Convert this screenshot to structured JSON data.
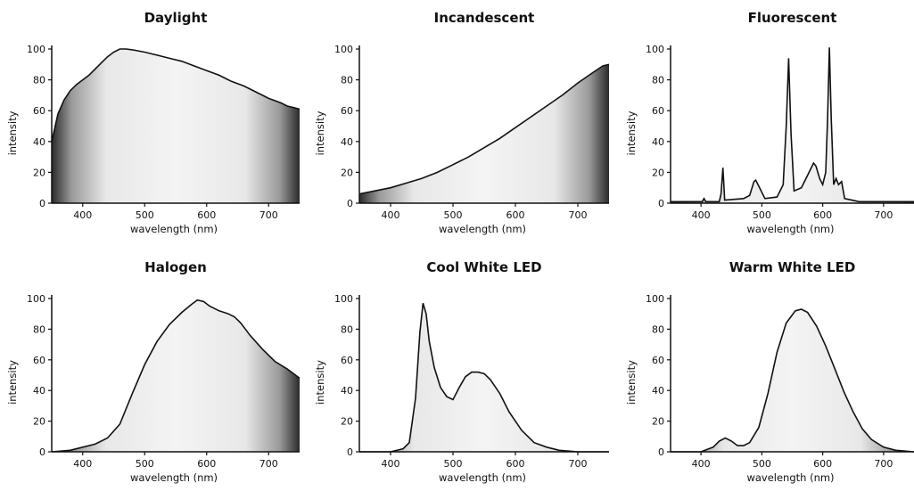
{
  "chart_data": [
    {
      "type": "area",
      "title": "Daylight",
      "xlabel": "wavelength (nm)",
      "ylabel": "intensity",
      "xlim": [
        350,
        750
      ],
      "ylim": [
        0,
        100
      ],
      "x_ticks": [
        "400",
        "500",
        "600",
        "700"
      ],
      "y_ticks": [
        "0",
        "20",
        "40",
        "60",
        "80",
        "100"
      ],
      "series": [
        {
          "x": [
            350,
            360,
            370,
            380,
            390,
            400,
            410,
            420,
            430,
            440,
            450,
            460,
            470,
            480,
            500,
            520,
            540,
            560,
            580,
            600,
            620,
            640,
            660,
            680,
            700,
            720,
            730,
            740,
            750
          ],
          "y": [
            40,
            58,
            67,
            73,
            77,
            80,
            83,
            87,
            91,
            95,
            98,
            100,
            100,
            99.5,
            98,
            96,
            94,
            92,
            89,
            86,
            83,
            79,
            76,
            72,
            68,
            65,
            63,
            62,
            61
          ]
        }
      ]
    },
    {
      "type": "area",
      "title": "Incandescent",
      "xlabel": "wavelength (nm)",
      "ylabel": "intensity",
      "xlim": [
        350,
        750
      ],
      "ylim": [
        0,
        100
      ],
      "x_ticks": [
        "400",
        "500",
        "600",
        "700"
      ],
      "y_ticks": [
        "0",
        "20",
        "40",
        "60",
        "80",
        "100"
      ],
      "series": [
        {
          "x": [
            350,
            375,
            400,
            425,
            450,
            475,
            500,
            525,
            550,
            575,
            600,
            625,
            650,
            675,
            700,
            725,
            740,
            750
          ],
          "y": [
            6,
            8,
            10,
            13,
            16,
            20,
            25,
            30,
            36,
            42,
            49,
            56,
            63,
            70,
            78,
            85,
            89,
            90
          ]
        }
      ]
    },
    {
      "type": "area",
      "title": "Fluorescent",
      "xlabel": "wavelength (nm)",
      "ylabel": "intensity",
      "xlim": [
        350,
        750
      ],
      "ylim": [
        0,
        100
      ],
      "x_ticks": [
        "400",
        "500",
        "600",
        "700"
      ],
      "y_ticks": [
        "0",
        "20",
        "40",
        "60",
        "80",
        "100"
      ],
      "series": [
        {
          "x": [
            350,
            390,
            402,
            405,
            408,
            430,
            433,
            436,
            439,
            470,
            480,
            487,
            490,
            495,
            505,
            525,
            535,
            540,
            544,
            548,
            553,
            565,
            575,
            580,
            585,
            589,
            595,
            600,
            605,
            608,
            611,
            614,
            618,
            622,
            626,
            631,
            636,
            660,
            700,
            750
          ],
          "y": [
            1,
            1,
            1,
            3,
            1,
            1,
            6,
            23,
            2,
            3,
            5,
            14,
            15,
            11,
            3,
            4,
            12,
            50,
            94,
            45,
            8,
            10,
            18,
            22,
            26,
            24,
            16,
            12,
            20,
            55,
            101,
            55,
            12,
            16,
            12,
            14,
            3,
            1,
            1,
            1
          ]
        }
      ]
    },
    {
      "type": "area",
      "title": "Halogen",
      "xlabel": "wavelength (nm)",
      "ylabel": "intensity",
      "xlim": [
        350,
        750
      ],
      "ylim": [
        0,
        100
      ],
      "x_ticks": [
        "400",
        "500",
        "600",
        "700"
      ],
      "y_ticks": [
        "0",
        "20",
        "40",
        "60",
        "80",
        "100"
      ],
      "series": [
        {
          "x": [
            350,
            380,
            400,
            420,
            440,
            460,
            480,
            500,
            520,
            540,
            560,
            575,
            585,
            595,
            605,
            620,
            635,
            645,
            655,
            670,
            690,
            710,
            730,
            750
          ],
          "y": [
            0,
            1,
            3,
            5,
            9,
            18,
            38,
            57,
            72,
            83,
            91,
            96,
            99,
            98,
            95,
            92,
            90,
            88,
            84,
            76,
            67,
            59,
            54,
            48
          ]
        }
      ]
    },
    {
      "type": "area",
      "title": "Cool White LED",
      "xlabel": "wavelength (nm)",
      "ylabel": "intensity",
      "xlim": [
        350,
        750
      ],
      "ylim": [
        0,
        100
      ],
      "x_ticks": [
        "400",
        "500",
        "600",
        "700"
      ],
      "y_ticks": [
        "0",
        "20",
        "40",
        "60",
        "80",
        "100"
      ],
      "series": [
        {
          "x": [
            350,
            400,
            420,
            430,
            440,
            447,
            452,
            457,
            462,
            470,
            480,
            490,
            500,
            510,
            520,
            530,
            540,
            550,
            560,
            575,
            590,
            610,
            630,
            650,
            670,
            700,
            750
          ],
          "y": [
            0,
            0,
            2,
            6,
            35,
            78,
            97,
            90,
            72,
            55,
            42,
            36,
            34,
            42,
            49,
            52,
            52,
            51,
            47,
            38,
            26,
            14,
            6,
            3,
            1,
            0,
            0
          ]
        }
      ]
    },
    {
      "type": "area",
      "title": "Warm White LED",
      "xlabel": "wavelength (nm)",
      "ylabel": "intensity",
      "xlim": [
        350,
        750
      ],
      "ylim": [
        0,
        100
      ],
      "x_ticks": [
        "400",
        "500",
        "600",
        "700"
      ],
      "y_ticks": [
        "0",
        "20",
        "40",
        "60",
        "80",
        "100"
      ],
      "series": [
        {
          "x": [
            350,
            400,
            420,
            430,
            440,
            450,
            460,
            470,
            480,
            495,
            510,
            525,
            540,
            555,
            565,
            575,
            590,
            605,
            620,
            635,
            650,
            665,
            680,
            700,
            720,
            750
          ],
          "y": [
            0,
            0,
            3,
            7,
            9,
            7,
            4,
            4,
            6,
            16,
            38,
            65,
            84,
            92,
            93,
            91,
            82,
            69,
            54,
            39,
            26,
            15,
            8,
            3,
            1,
            0
          ]
        }
      ]
    }
  ]
}
